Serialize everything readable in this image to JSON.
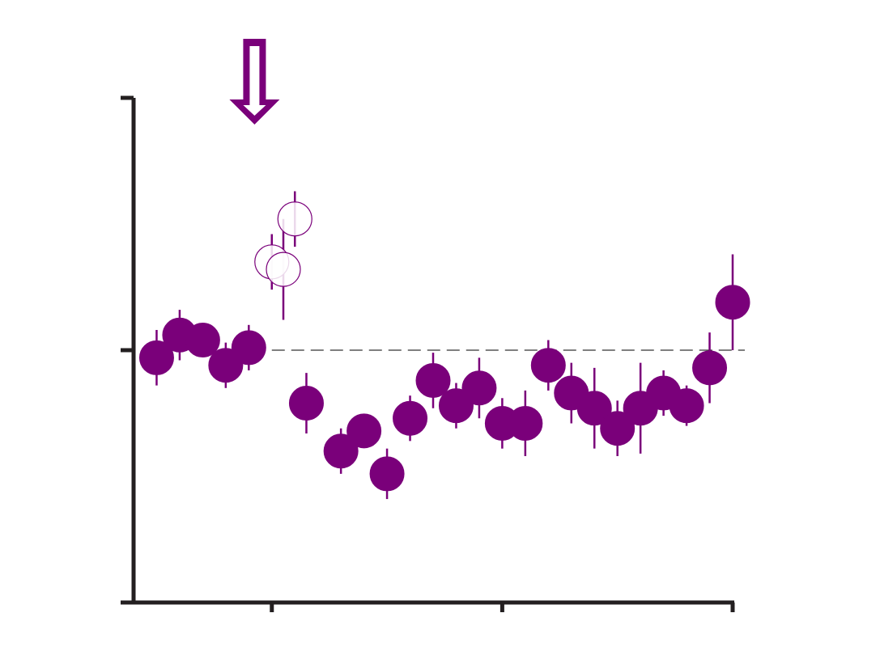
{
  "chart_data": {
    "type": "scatter",
    "title": "",
    "xlabel": "",
    "ylabel": "",
    "xlim": [
      0,
      26
    ],
    "ylim": [
      -1,
      1
    ],
    "x_ticks": [
      6,
      16,
      26
    ],
    "y_ticks": [
      -1,
      0,
      1
    ],
    "grid": false,
    "legend": "none",
    "reference_line": {
      "y": 0,
      "style": "dashed",
      "x_from": 6,
      "x_to": 26
    },
    "marker_color": "#7a007a",
    "annotations": [
      {
        "type": "arrow-down",
        "x": 5.25
      }
    ],
    "series": [
      {
        "marker": "filled",
        "points": [
          {
            "x": 1.0,
            "y": -0.03,
            "err": 0.11
          },
          {
            "x": 2.0,
            "y": 0.06,
            "err": 0.1
          },
          {
            "x": 3.0,
            "y": 0.04,
            "err": 0.06
          },
          {
            "x": 4.0,
            "y": -0.06,
            "err": 0.09
          },
          {
            "x": 5.0,
            "y": 0.01,
            "err": 0.09
          },
          {
            "x": 7.5,
            "y": -0.21,
            "err": 0.12
          },
          {
            "x": 9.0,
            "y": -0.4,
            "err": 0.09
          },
          {
            "x": 10.0,
            "y": -0.32,
            "err": 0.06
          },
          {
            "x": 11.0,
            "y": -0.49,
            "err": 0.1
          },
          {
            "x": 12.0,
            "y": -0.27,
            "err": 0.09
          },
          {
            "x": 13.0,
            "y": -0.12,
            "err": 0.11
          },
          {
            "x": 14.0,
            "y": -0.22,
            "err": 0.09
          },
          {
            "x": 15.0,
            "y": -0.15,
            "err": 0.12
          },
          {
            "x": 16.0,
            "y": -0.29,
            "err": 0.1
          },
          {
            "x": 17.0,
            "y": -0.29,
            "err": 0.13
          },
          {
            "x": 18.0,
            "y": -0.06,
            "err": 0.1
          },
          {
            "x": 19.0,
            "y": -0.17,
            "err": 0.12
          },
          {
            "x": 20.0,
            "y": -0.23,
            "err": 0.16
          },
          {
            "x": 21.0,
            "y": -0.31,
            "err": 0.11
          },
          {
            "x": 22.0,
            "y": -0.23,
            "err": 0.18
          },
          {
            "x": 23.0,
            "y": -0.17,
            "err": 0.09
          },
          {
            "x": 24.0,
            "y": -0.22,
            "err": 0.08
          },
          {
            "x": 25.0,
            "y": -0.07,
            "err": 0.14
          },
          {
            "x": 26.0,
            "y": 0.19,
            "err": 0.19
          }
        ]
      },
      {
        "marker": "open",
        "points": [
          {
            "x": 6.0,
            "y": 0.35,
            "err": 0.11
          },
          {
            "x": 6.5,
            "y": 0.32,
            "err": 0.2
          },
          {
            "x": 7.0,
            "y": 0.52,
            "err": 0.11
          }
        ]
      }
    ]
  }
}
